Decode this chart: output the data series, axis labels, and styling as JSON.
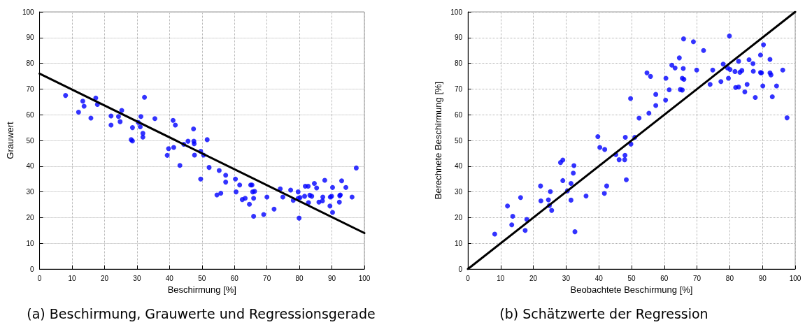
{
  "chart_data": [
    {
      "type": "scatter",
      "title": "(a) Beschirmung, Grauwerte und Regressionsgerade",
      "xlabel": "Beschirmung [%]",
      "ylabel": "Grauwert",
      "xlim": [
        0,
        100
      ],
      "ylim": [
        0,
        100
      ],
      "xticks": [
        0,
        10,
        20,
        30,
        40,
        50,
        60,
        70,
        80,
        90,
        100
      ],
      "yticks": [
        0,
        10,
        20,
        30,
        40,
        50,
        60,
        70,
        80,
        90,
        100
      ],
      "grid": true,
      "marker": "circle",
      "series": [
        {
          "color": "#0000ff",
          "x": [
            8,
            12,
            13.3,
            13.7,
            15.8,
            17.3,
            17.8,
            22,
            22,
            24.3,
            24.8,
            25.3,
            28.2,
            28.6,
            28.6,
            30.4,
            31,
            31.2,
            31.8,
            31.8,
            32.3,
            35.5,
            39.3,
            39.7,
            41.1,
            41.3,
            41.8,
            43.2,
            44.4,
            45.7,
            47.5,
            47.6,
            47.4,
            47.7,
            49.6,
            49.6,
            50.5,
            51.6,
            52.2,
            54.6,
            55.3,
            55.8,
            57.3,
            57.3,
            60.3,
            60.5,
            61.6,
            62.4,
            63.3,
            64.6,
            65,
            65.4,
            65.6,
            65.9,
            66.2,
            65.9,
            69,
            70,
            72.2,
            74.1,
            74.9,
            77.3,
            78.1,
            79.6,
            79.6,
            80.2,
            79.9,
            81.6,
            81.8,
            82.7,
            82.8,
            83.2,
            83.8,
            84.6,
            85.3,
            86,
            87.1,
            87.2,
            87.8,
            89.4,
            89.5,
            89.9,
            90.2,
            90.2,
            92.3,
            92.4,
            92.6,
            93,
            94.3,
            96.2,
            97.5
          ],
          "values": [
            67.5,
            61,
            65.3,
            63.3,
            58.7,
            66.5,
            64,
            56,
            59.5,
            59.3,
            57.3,
            61.7,
            50.3,
            49.8,
            55,
            57,
            55.3,
            59.3,
            52.8,
            51.3,
            66.8,
            58.5,
            44.2,
            46.8,
            57.8,
            47.3,
            56,
            40.3,
            48.5,
            49.7,
            49.7,
            48.7,
            54.5,
            44.3,
            45.8,
            35,
            44.3,
            50.3,
            39.5,
            28.8,
            38.3,
            29.5,
            36.5,
            33.8,
            35,
            30,
            32.7,
            27,
            27.5,
            25.2,
            32.7,
            32.7,
            30,
            27.5,
            30.2,
            20.5,
            21.2,
            28,
            23.3,
            31.2,
            28,
            30.7,
            26.7,
            30,
            27.5,
            27.8,
            19.8,
            28.3,
            32.2,
            32.2,
            25.8,
            28.7,
            28.3,
            33.3,
            31.5,
            26,
            26.5,
            28,
            34.5,
            24.5,
            28,
            28.3,
            22,
            31.7,
            26,
            28.5,
            28.8,
            34.3,
            31.7,
            28,
            39.3
          ]
        },
        {
          "type": "line",
          "color": "#000000",
          "marker": "none",
          "line_style": "solid",
          "x": [
            0,
            100
          ],
          "values": [
            76,
            14
          ]
        }
      ]
    },
    {
      "type": "scatter",
      "title": "(b) Schätzwerte der Regression",
      "xlabel": "Beobachtete Beschirmung [%]",
      "ylabel": "Berechnete Beschirmung [%]",
      "xlim": [
        0,
        100
      ],
      "ylim": [
        0,
        100
      ],
      "xticks": [
        0,
        10,
        20,
        30,
        40,
        50,
        60,
        70,
        80,
        90,
        100
      ],
      "yticks": [
        0,
        10,
        20,
        30,
        40,
        50,
        60,
        70,
        80,
        90,
        100
      ],
      "grid": true,
      "marker": "circle",
      "series": [
        {
          "color": "#0000ff",
          "x": [
            8.2,
            12.1,
            13.7,
            13.4,
            16.1,
            18,
            17.5,
            22.2,
            22.3,
            24.6,
            24.9,
            25.2,
            25.6,
            28.3,
            29,
            29,
            30.4,
            31.5,
            31.5,
            32.2,
            32.4,
            32.7,
            36.1,
            39.7,
            40.3,
            41.8,
            41.7,
            42.4,
            45.2,
            46.2,
            47.9,
            48,
            48.1,
            48.4,
            49.7,
            51,
            49.8,
            52.3,
            54.7,
            55.8,
            55.3,
            57.4,
            57.4,
            60.4,
            60.5,
            61.5,
            62.3,
            63.3,
            64.6,
            64.9,
            65.5,
            65.8,
            65.9,
            65.5,
            66,
            68.9,
            69.9,
            72,
            74,
            74.8,
            77.3,
            78,
            79.3,
            79.6,
            79.9,
            80.1,
            81.6,
            81.8,
            82.7,
            82.7,
            83.1,
            83.7,
            84.6,
            85.3,
            85.9,
            87.1,
            87.2,
            87.8,
            89.4,
            89.4,
            89.7,
            90.1,
            90.3,
            92.3,
            92.3,
            92.6,
            93,
            94.3,
            96.2,
            97.5
          ],
          "values": [
            13.6,
            24.5,
            20.5,
            17.2,
            27.8,
            19.3,
            15,
            32.3,
            26.5,
            26.9,
            24.7,
            30.1,
            22.8,
            41.4,
            42.4,
            34.4,
            30.4,
            33.3,
            26.8,
            37.3,
            40.2,
            14.5,
            28.4,
            51.5,
            47.3,
            46.5,
            29.4,
            32.3,
            44.5,
            42.5,
            42.5,
            44.2,
            51.2,
            34.7,
            66.3,
            51.2,
            48.6,
            58.7,
            76.3,
            74.9,
            60.6,
            67.9,
            63.6,
            65.7,
            74.2,
            69.7,
            79.3,
            78.2,
            82.1,
            69.8,
            69.6,
            78,
            89.5,
            74.2,
            73.8,
            88.4,
            77.4,
            85,
            71.8,
            77.4,
            72.9,
            79.7,
            78.2,
            74.2,
            90.6,
            77.6,
            76.8,
            70.6,
            80.8,
            70.8,
            76.5,
            77.2,
            68.9,
            71.8,
            81.4,
            79.9,
            76.9,
            66.7,
            83.2,
            76.4,
            76.3,
            71.2,
            87.2,
            81.5,
            76.3,
            75.5,
            67,
            71.2,
            77.4,
            58.8
          ]
        },
        {
          "type": "line",
          "color": "#000000",
          "marker": "none",
          "line_style": "solid",
          "x": [
            0,
            100
          ],
          "values": [
            0,
            100
          ]
        }
      ]
    }
  ]
}
